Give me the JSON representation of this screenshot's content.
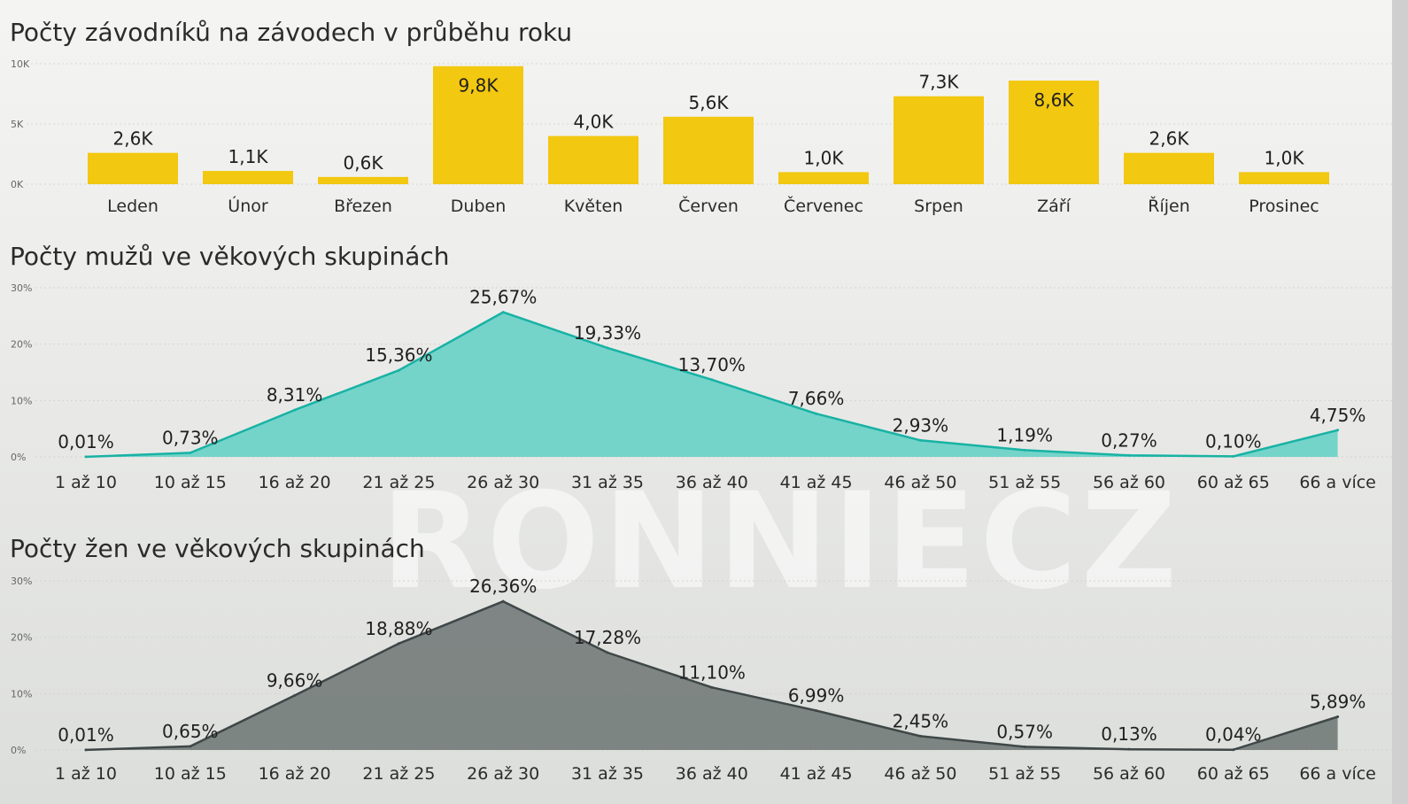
{
  "watermark": "RONNIECZ",
  "chart_data": [
    {
      "type": "bar",
      "title": "Počty závodníků na závodech v průběhu roku",
      "categories": [
        "Leden",
        "Únor",
        "Březen",
        "Duben",
        "Květen",
        "Červen",
        "Červenec",
        "Srpen",
        "Září",
        "Říjen",
        "Prosinec"
      ],
      "values": [
        2600,
        1100,
        600,
        9800,
        4000,
        5600,
        1000,
        7300,
        8600,
        2600,
        1000
      ],
      "value_labels": [
        "2,6K",
        "1,1K",
        "0,6K",
        "9,8K",
        "4,0K",
        "5,6K",
        "1,0K",
        "7,3K",
        "8,6K",
        "2,6K",
        "1,0K"
      ],
      "y_ticks": [
        "0K",
        "5K",
        "10K"
      ],
      "ylim": [
        0,
        10000
      ],
      "color": "#f2c811",
      "grid": true
    },
    {
      "type": "area",
      "title": "Počty mužů ve věkových skupinách",
      "categories": [
        "1 až 10",
        "10 až 15",
        "16 až 20",
        "21 až 25",
        "26 až 30",
        "31 až 35",
        "36 až 40",
        "41 až 45",
        "46 až 50",
        "51 až 55",
        "56 až 60",
        "60 až 65",
        "66 a více"
      ],
      "values": [
        0.01,
        0.73,
        8.31,
        15.36,
        25.67,
        19.33,
        13.7,
        7.66,
        2.93,
        1.19,
        0.27,
        0.1,
        4.75
      ],
      "value_labels": [
        "0,01%",
        "0,73%",
        "8,31%",
        "15,36%",
        "25,67%",
        "19,33%",
        "13,70%",
        "7,66%",
        "2,93%",
        "1,19%",
        "0,27%",
        "0,10%",
        "4,75%"
      ],
      "y_ticks": [
        "0%",
        "10%",
        "20%",
        "30%"
      ],
      "ylim": [
        0,
        30
      ],
      "line_color": "#18b2a4",
      "fill_color": "#5fd0c4",
      "grid": true
    },
    {
      "type": "area",
      "title": "Počty žen ve věkových skupinách",
      "categories": [
        "1 až 10",
        "10 až 15",
        "16 až 20",
        "21 až 25",
        "26 až 30",
        "31 až 35",
        "36 až 40",
        "41 až 45",
        "46 až 50",
        "51 až 55",
        "56 až 60",
        "60 až 65",
        "66 a více"
      ],
      "values": [
        0.01,
        0.65,
        9.66,
        18.88,
        26.36,
        17.28,
        11.1,
        6.99,
        2.45,
        0.57,
        0.13,
        0.04,
        5.89
      ],
      "value_labels": [
        "0,01%",
        "0,65%",
        "9,66%",
        "18,88%",
        "26,36%",
        "17,28%",
        "11,10%",
        "6,99%",
        "2,45%",
        "0,57%",
        "0,13%",
        "0,04%",
        "5,89%"
      ],
      "y_ticks": [
        "0%",
        "10%",
        "20%",
        "30%"
      ],
      "ylim": [
        0,
        30
      ],
      "line_color": "#3f4748",
      "fill_color": "#6c7473",
      "grid": true
    }
  ]
}
